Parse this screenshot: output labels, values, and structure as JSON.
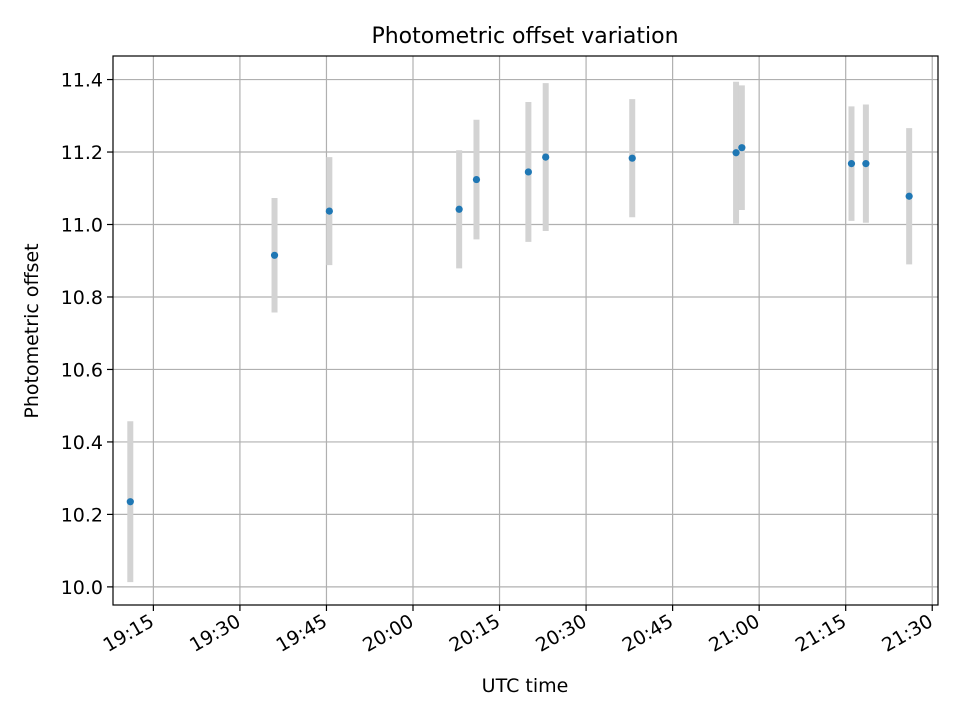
{
  "chart_data": {
    "type": "scatter",
    "title": "Photometric offset variation",
    "xlabel": "UTC time",
    "ylabel": "Photometric offset",
    "xlim": [
      "19:08",
      "21:31"
    ],
    "ylim": [
      9.95,
      11.465
    ],
    "grid": true,
    "x_ticks": [
      "19:15",
      "19:30",
      "19:45",
      "20:00",
      "20:15",
      "20:30",
      "20:45",
      "21:00",
      "21:15",
      "21:30"
    ],
    "y_ticks": [
      "10.0",
      "10.2",
      "10.4",
      "10.6",
      "10.8",
      "11.0",
      "11.2",
      "11.4"
    ],
    "points": [
      {
        "time": "19:11",
        "value": 10.235,
        "err": 0.222
      },
      {
        "time": "19:36",
        "value": 10.915,
        "err": 0.158
      },
      {
        "time": "19:45.5",
        "value": 11.037,
        "err": 0.149
      },
      {
        "time": "20:08",
        "value": 11.042,
        "err": 0.163
      },
      {
        "time": "20:11",
        "value": 11.124,
        "err": 0.165
      },
      {
        "time": "20:20",
        "value": 11.145,
        "err": 0.193
      },
      {
        "time": "20:23",
        "value": 11.186,
        "err": 0.204
      },
      {
        "time": "20:38",
        "value": 11.183,
        "err": 0.163
      },
      {
        "time": "20:56",
        "value": 11.198,
        "err": 0.196
      },
      {
        "time": "20:57",
        "value": 11.212,
        "err": 0.172
      },
      {
        "time": "21:16",
        "value": 11.168,
        "err": 0.158
      },
      {
        "time": "21:18.5",
        "value": 11.168,
        "err": 0.163
      },
      {
        "time": "21:26",
        "value": 11.078,
        "err": 0.188
      }
    ],
    "colors": {
      "marker": "#1f77b4",
      "errorbar": "#d3d3d3",
      "grid": "#b0b0b0"
    }
  }
}
